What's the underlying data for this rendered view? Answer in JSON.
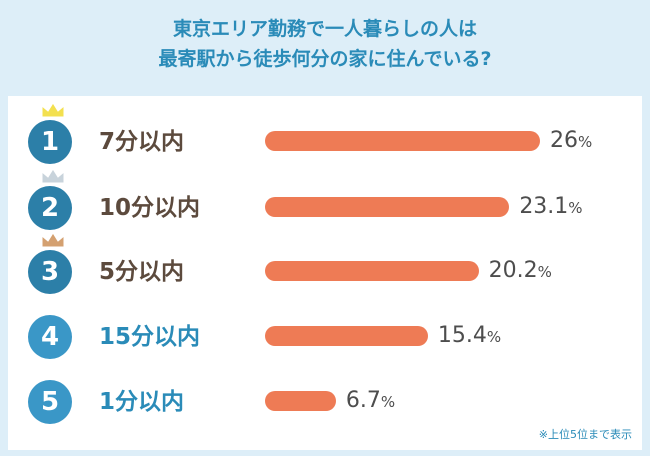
{
  "title_line1": "東京エリア勤務で一人暮らしの人は",
  "title_line2": "最寄駅から徒歩何分の家に住んでいる?",
  "note": "※上位5位まで表示",
  "colors": {
    "background": "#ddeef8",
    "title": "#2a8bb8",
    "bar": "#ee7b55",
    "top3_circle": "#2c7fa8",
    "other_circle": "#3a97c7",
    "top3_label": "#5c4a3d",
    "other_label": "#2a8bb8",
    "crown_gold": "#f3e04f",
    "crown_silver": "#c8d3db",
    "crown_bronze": "#d4a070"
  },
  "chart_data": {
    "type": "bar",
    "title": "東京エリア勤務で一人暮らしの人は最寄駅から徒歩何分の家に住んでいる?",
    "orientation": "horizontal",
    "value_unit": "%",
    "categories": [
      "7分以内",
      "10分以内",
      "5分以内",
      "15分以内",
      "1分以内"
    ],
    "ranks": [
      "1",
      "2",
      "3",
      "4",
      "5"
    ],
    "values": [
      26,
      23.1,
      20.2,
      15.4,
      6.7
    ],
    "value_labels": [
      "26",
      "23.1",
      "20.2",
      "15.4",
      "6.7"
    ],
    "crowns": [
      "gold",
      "silver",
      "bronze",
      null,
      null
    ]
  }
}
